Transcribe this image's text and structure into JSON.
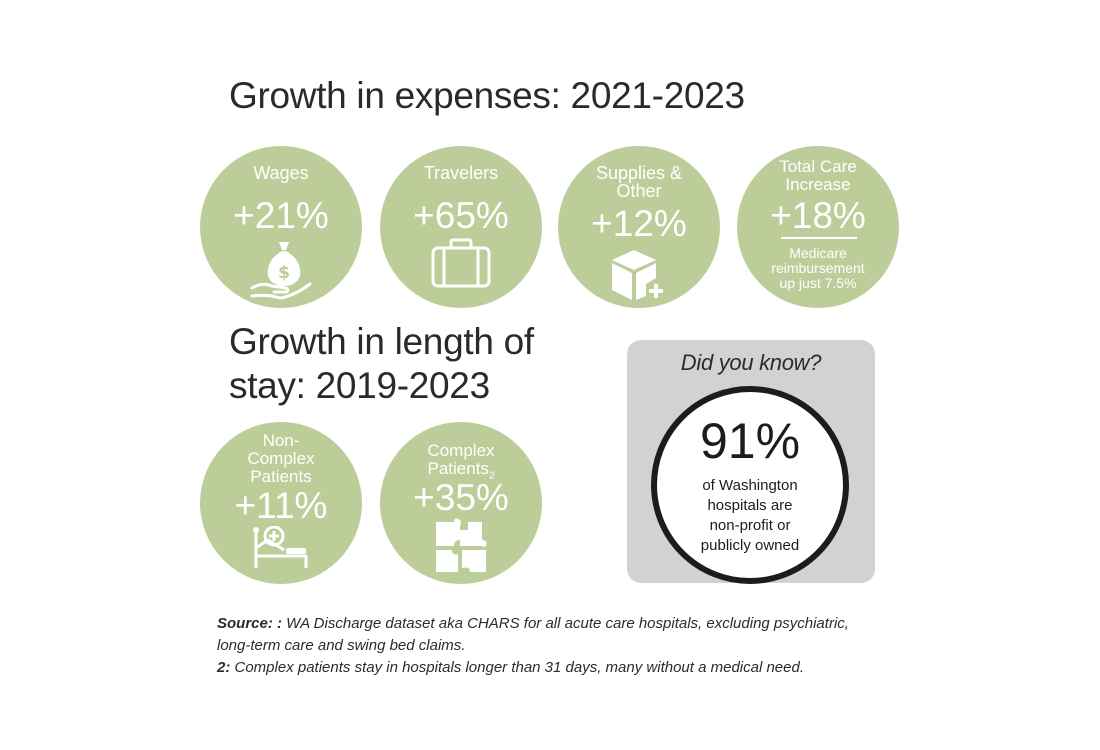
{
  "expenses": {
    "title": "Growth in expenses: 2021-2023",
    "items": [
      {
        "label": "Wages",
        "value": "+21%",
        "icon": "money-bag-hand-icon"
      },
      {
        "label": "Travelers",
        "value": "+65%",
        "icon": "suitcase-icon"
      },
      {
        "label_line1": "Supplies &",
        "label_line2": "Other",
        "value": "+12%",
        "icon": "box-plus-icon"
      },
      {
        "label_line1": "Total Care",
        "label_line2": "Increase",
        "value": "+18%",
        "note_line1": "Medicare",
        "note_line2": "reimbursement",
        "note_line3": "up just 7.5%"
      }
    ]
  },
  "length_of_stay": {
    "title_line1": "Growth in length of",
    "title_line2": "stay: 2019-2023",
    "items": [
      {
        "label_line1": "Non-",
        "label_line2": "Complex",
        "label_line3": "Patients",
        "value": "+11%",
        "icon": "hospital-bed-icon"
      },
      {
        "label_line1": "Complex",
        "label_line2": "Patients",
        "superscript": "2",
        "value": "+35%",
        "icon": "puzzle-icon"
      }
    ]
  },
  "did_you_know": {
    "title": "Did you know?",
    "percent": "91%",
    "text_line1": "of Washington",
    "text_line2": "hospitals are",
    "text_line3": "non-profit or",
    "text_line4": "publicly owned"
  },
  "footnotes": {
    "source_label": "Source: :",
    "source_text_line1": " WA Discharge dataset aka CHARS for all acute care hospitals, excluding psychiatric,",
    "source_text_line2": "long-term care and swing bed claims.",
    "note2_label": "2:",
    "note2_text": " Complex patients stay in hospitals longer than 31 days, many without a medical need."
  },
  "colors": {
    "circle": "#bccd9a",
    "panel": "#d1d2d3",
    "ring": "#1c1c1c",
    "text": "#2b2b2b"
  }
}
